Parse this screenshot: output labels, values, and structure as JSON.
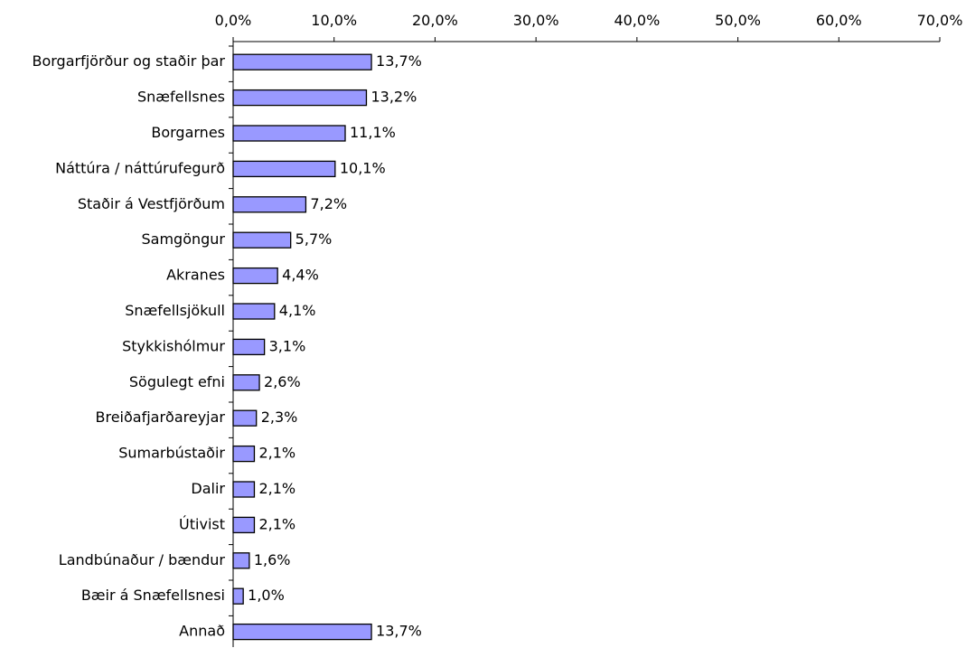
{
  "chart_data": {
    "type": "bar",
    "orientation": "horizontal",
    "title": "",
    "xlabel": "",
    "ylabel": "",
    "xlim": [
      0,
      70
    ],
    "x_ticks": [
      0,
      10,
      20,
      30,
      40,
      50,
      60,
      70
    ],
    "x_tick_labels": [
      "0,0%",
      "10,0%",
      "20,0%",
      "30,0%",
      "40,0%",
      "50,0%",
      "60,0%",
      "70,0%"
    ],
    "x_axis_position": "top",
    "grid": false,
    "legend": "none",
    "bar_color": "#9999ff",
    "bar_edge_color": "#000000",
    "categories": [
      "Borgarfjörður og staðir þar",
      "Snæfellsnes",
      "Borgarnes",
      "Náttúra / náttúrufegurð",
      "Staðir á Vestfjörðum",
      "Samgöngur",
      "Akranes",
      "Snæfellsjökull",
      "Stykkishólmur",
      "Sögulegt efni",
      "Breiðafjarðareyjar",
      "Sumarbústaðir",
      "Dalir",
      "Útivist",
      "Landbúnaður / bændur",
      "Bæir á Snæfellsnesi",
      "Annað"
    ],
    "values": [
      13.7,
      13.2,
      11.1,
      10.1,
      7.2,
      5.7,
      4.4,
      4.1,
      3.1,
      2.6,
      2.3,
      2.1,
      2.1,
      2.1,
      1.6,
      1.0,
      13.7
    ],
    "data_labels": [
      "13,7%",
      "13,2%",
      "11,1%",
      "10,1%",
      "7,2%",
      "5,7%",
      "4,4%",
      "4,1%",
      "3,1%",
      "2,6%",
      "2,3%",
      "2,1%",
      "2,1%",
      "2,1%",
      "1,6%",
      "1,0%",
      "13,7%"
    ]
  }
}
